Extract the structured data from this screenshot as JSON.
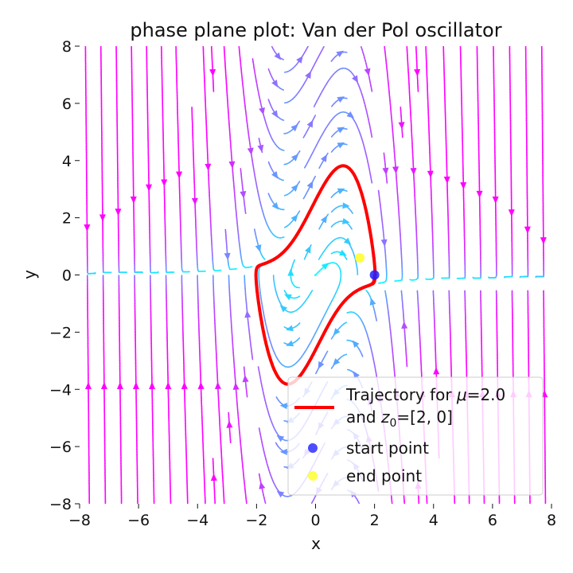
{
  "chart_data": {
    "type": "line",
    "title": "phase plane plot: Van der Pol oscillator",
    "xlabel": "x",
    "ylabel": "y",
    "xlim": [
      -8,
      8
    ],
    "ylim": [
      -8,
      8
    ],
    "xticks": [
      "−8",
      "−6",
      "−4",
      "−2",
      "0",
      "2",
      "4",
      "6",
      "8"
    ],
    "yticks": [
      "−8",
      "−6",
      "−4",
      "−2",
      "0",
      "2",
      "4",
      "6",
      "8"
    ],
    "grid": false,
    "mu": 2.0,
    "z0": [
      2,
      0
    ],
    "series": [
      {
        "name": "Trajectory for μ=2.0 and z₀=[2, 0]",
        "color": "#ff0000"
      }
    ],
    "points": {
      "start": {
        "name": "start point",
        "x": 2.0,
        "y": 0.0,
        "color": "#2020ff"
      },
      "end": {
        "name": "end point",
        "x": 1.5,
        "y": 0.6,
        "color": "#ffff20"
      }
    },
    "streamplot": {
      "colormap": "cool",
      "description_colors": [
        "#00ffff",
        "#ff00ff"
      ]
    },
    "legend": {
      "position": "lower-right",
      "line1": "Trajectory for ",
      "mu_sym": "μ",
      "mu_val": "=2.0",
      "line2a": "and ",
      "z_sym": "z",
      "z_sub": "0",
      "line2b": "=[2, 0]",
      "start_label": "start point",
      "end_label": "end point"
    }
  }
}
